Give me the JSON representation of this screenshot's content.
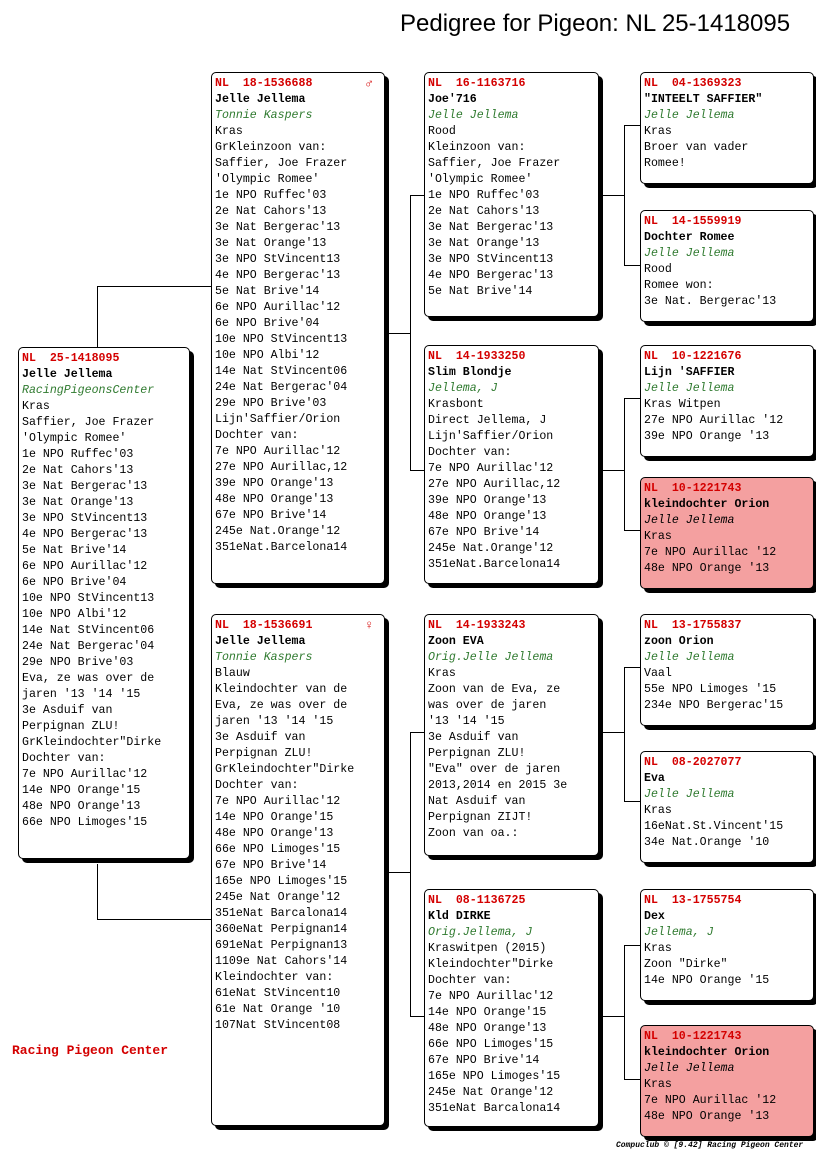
{
  "title": "Pedigree for Pigeon: NL  25-1418095",
  "brand": "Racing Pigeon Center",
  "footer": "Compuclub © [9.42]  Racing Pigeon Center",
  "subject": {
    "ring": "NL  25-1418095",
    "name": "Jelle Jellema",
    "breeder": "RacingPigeonsCenter",
    "lines": [
      "Kras",
      "Saffier, Joe Frazer",
      "'Olympic Romee'",
      "1e NPO Ruffec'03",
      "2e Nat Cahors'13",
      "3e Nat Bergerac'13",
      "3e Nat Orange'13",
      "3e NPO StVincent13",
      "4e NPO Bergerac'13",
      "5e Nat Brive'14",
      "6e NPO Aurillac'12",
      "6e NPO Brive'04",
      "10e NPO StVincent13",
      "10e NPO Albi'12",
      "14e Nat StVincent06",
      "24e Nat Bergerac'04",
      "29e NPO Brive'03",
      "Eva, ze was over de",
      "jaren '13 '14 '15",
      "3e Asduif van",
      "Perpignan ZLU!",
      "GrKleindochter\"Dirke",
      "Dochter van:",
      "7e NPO Aurillac'12",
      "14e NPO Orange'15",
      "48e NPO Orange'13",
      "66e NPO Limoges'15"
    ]
  },
  "sire": {
    "ring": "NL  18-1536688",
    "sex_symbol": "♂",
    "name": "Jelle Jellema",
    "breeder": "Tonnie Kaspers",
    "lines": [
      "Kras",
      "GrKleinzoon van:",
      "Saffier, Joe Frazer",
      "'Olympic Romee'",
      "1e NPO Ruffec'03",
      "2e Nat Cahors'13",
      "3e Nat Bergerac'13",
      "3e Nat Orange'13",
      "3e NPO StVincent13",
      "4e NPO Bergerac'13",
      "5e Nat Brive'14",
      "6e NPO Aurillac'12",
      "6e NPO Brive'04",
      "10e NPO StVincent13",
      "10e NPO Albi'12",
      "14e Nat StVincent06",
      "24e Nat Bergerac'04",
      "29e NPO Brive'03",
      "Lijn'Saffier/Orion",
      "Dochter van:",
      "7e NPO Aurillac'12",
      "27e NPO Aurillac,12",
      "39e NPO Orange'13",
      "48e NPO Orange'13",
      "67e NPO Brive'14",
      "245e Nat.Orange'12",
      "351eNat.Barcelona14"
    ]
  },
  "dam": {
    "ring": "NL  18-1536691",
    "sex_symbol": "♀",
    "name": "Jelle Jellema",
    "breeder": "Tonnie Kaspers",
    "lines": [
      "Blauw",
      "Kleindochter van de",
      "Eva, ze was over de",
      "jaren '13 '14 '15",
      "3e Asduif van",
      "Perpignan ZLU!",
      "GrKleindochter\"Dirke",
      "Dochter van:",
      "7e NPO Aurillac'12",
      "14e NPO Orange'15",
      "48e NPO Orange'13",
      "66e NPO Limoges'15",
      "67e NPO Brive'14",
      "165e NPO Limoges'15",
      "245e Nat Orange'12",
      "351eNat Barcalona14",
      "360eNat Perpignan14",
      "691eNat Perpignan13",
      "1109e Nat Cahors'14",
      "Kleindochter van:",
      "61eNat StVincent10",
      "61e Nat Orange '10",
      "107Nat StVincent08"
    ]
  },
  "sire_sire": {
    "ring": "NL  16-1163716",
    "name": "Joe'716",
    "breeder": "Jelle Jellema",
    "lines": [
      "Rood",
      "Kleinzoon van:",
      "Saffier, Joe Frazer",
      "'Olympic Romee'",
      "1e NPO Ruffec'03",
      "2e Nat Cahors'13",
      "3e Nat Bergerac'13",
      "3e Nat Orange'13",
      "3e NPO StVincent13",
      "4e NPO Bergerac'13",
      "5e Nat Brive'14"
    ]
  },
  "sire_dam": {
    "ring": "NL  14-1933250",
    "name": "Slim Blondje",
    "breeder": "Jellema, J",
    "lines": [
      "Krasbont",
      "Direct Jellema, J",
      "Lijn'Saffier/Orion",
      "Dochter van:",
      "7e NPO Aurillac'12",
      "27e NPO Aurillac,12",
      "39e NPO Orange'13",
      "48e NPO Orange'13",
      "67e NPO Brive'14",
      "245e Nat.Orange'12",
      "351eNat.Barcelona14"
    ]
  },
  "dam_sire": {
    "ring": "NL  14-1933243",
    "name": "Zoon EVA",
    "breeder": "Orig.Jelle Jellema",
    "lines": [
      "Kras",
      "Zoon van de Eva, ze",
      "was over de jaren",
      "'13 '14 '15",
      "3e Asduif van",
      "Perpignan ZLU!",
      "\"Eva\" over de jaren",
      "2013,2014 en 2015 3e",
      "Nat Asduif van",
      "Perpignan ZIJT!",
      "Zoon van oa.:"
    ]
  },
  "dam_dam": {
    "ring": "NL  08-1136725",
    "name": "Kld DIRKE",
    "breeder": "Orig.Jellema, J",
    "lines": [
      "Kraswitpen (2015)",
      "Kleindochter\"Dirke",
      "Dochter van:",
      "7e NPO Aurillac'12",
      "14e NPO Orange'15",
      "48e NPO Orange'13",
      "66e NPO Limoges'15",
      "67e NPO Brive'14",
      "165e NPO Limoges'15",
      "245e Nat Orange'12",
      "351eNat Barcalona14"
    ]
  },
  "gg1": {
    "ring": "NL  04-1369323",
    "name": "\"INTEELT SAFFIER\"",
    "breeder": "Jelle Jellema",
    "lines": [
      "Kras",
      "Broer van vader",
      "Romee!"
    ]
  },
  "gg2": {
    "ring": "NL  14-1559919",
    "name": "Dochter Romee",
    "breeder": "Jelle Jellema",
    "lines": [
      "Rood",
      "Romee won:",
      "3e Nat. Bergerac'13"
    ]
  },
  "gg3": {
    "ring": "NL  10-1221676",
    "name": "Lijn 'SAFFIER",
    "breeder": "Jelle Jellema",
    "lines": [
      "Kras Witpen",
      "27e NPO Aurillac '12",
      "39e NPO Orange '13"
    ]
  },
  "gg4": {
    "ring": "NL  10-1221743",
    "name": "kleindochter Orion",
    "breeder": "Jelle Jellema",
    "lines": [
      "Kras",
      "7e NPO Aurillac '12",
      "48e NPO Orange '13"
    ]
  },
  "gg5": {
    "ring": "NL  13-1755837",
    "name": "zoon Orion",
    "breeder": "Jelle Jellema",
    "lines": [
      "Vaal",
      "55e NPO Limoges '15",
      "234e NPO Bergerac'15"
    ]
  },
  "gg6": {
    "ring": "NL  08-2027077",
    "name": "Eva",
    "breeder": "Jelle Jellema",
    "lines": [
      "Kras",
      "16eNat.St.Vincent'15",
      "34e Nat.Orange '10"
    ]
  },
  "gg7": {
    "ring": "NL  13-1755754",
    "name": "Dex",
    "breeder": "Jellema, J",
    "lines": [
      "Kras",
      "Zoon \"Dirke\"",
      "14e NPO Orange '15"
    ]
  },
  "gg8": {
    "ring": "NL  10-1221743",
    "name": "kleindochter Orion",
    "breeder": "Jelle Jellema",
    "lines": [
      "Kras",
      "7e NPO Aurillac '12",
      "48e NPO Orange '13"
    ]
  },
  "colors": {
    "ring": "#d40000",
    "breeder": "#2f7a2f",
    "highlight": "#f4a0a0"
  }
}
